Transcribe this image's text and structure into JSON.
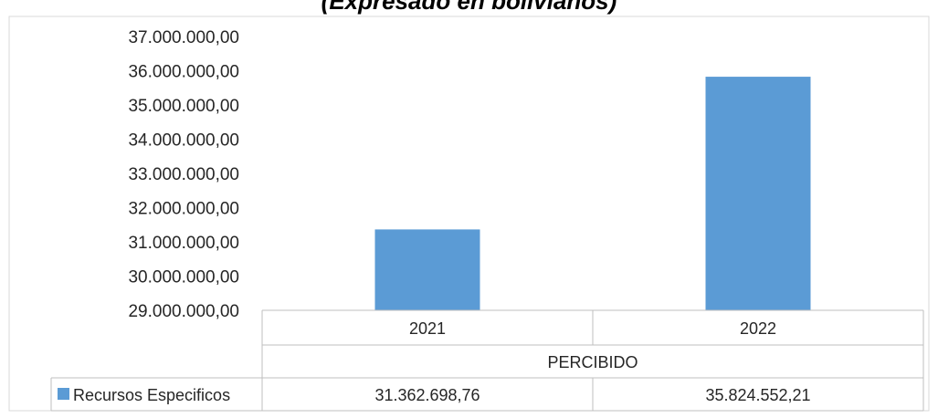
{
  "chart_data": {
    "type": "bar",
    "title": "(Expresado en bolivianos)",
    "categories": [
      "2021",
      "2022"
    ],
    "group_label": "PERCIBIDO",
    "series": [
      {
        "name": "Recursos Especificos",
        "values": [
          31362698.76,
          35824552.21
        ],
        "value_labels": [
          "31.362.698,76",
          "35.824.552,21"
        ],
        "color": "#5b9bd5"
      }
    ],
    "ylim": [
      29000000,
      37000000
    ],
    "yticks": [
      29000000,
      30000000,
      31000000,
      32000000,
      33000000,
      34000000,
      35000000,
      36000000,
      37000000
    ],
    "ytick_labels": [
      "29.000.000,00",
      "30.000.000,00",
      "31.000.000,00",
      "32.000.000,00",
      "33.000.000,00",
      "34.000.000,00",
      "35.000.000,00",
      "36.000.000,00",
      "37.000.000,00"
    ],
    "grid": false,
    "legend": "data-table-left",
    "colors": {
      "bar": "#5b9bd5",
      "table_border": "#bfbfbf",
      "text": "#262626"
    }
  }
}
